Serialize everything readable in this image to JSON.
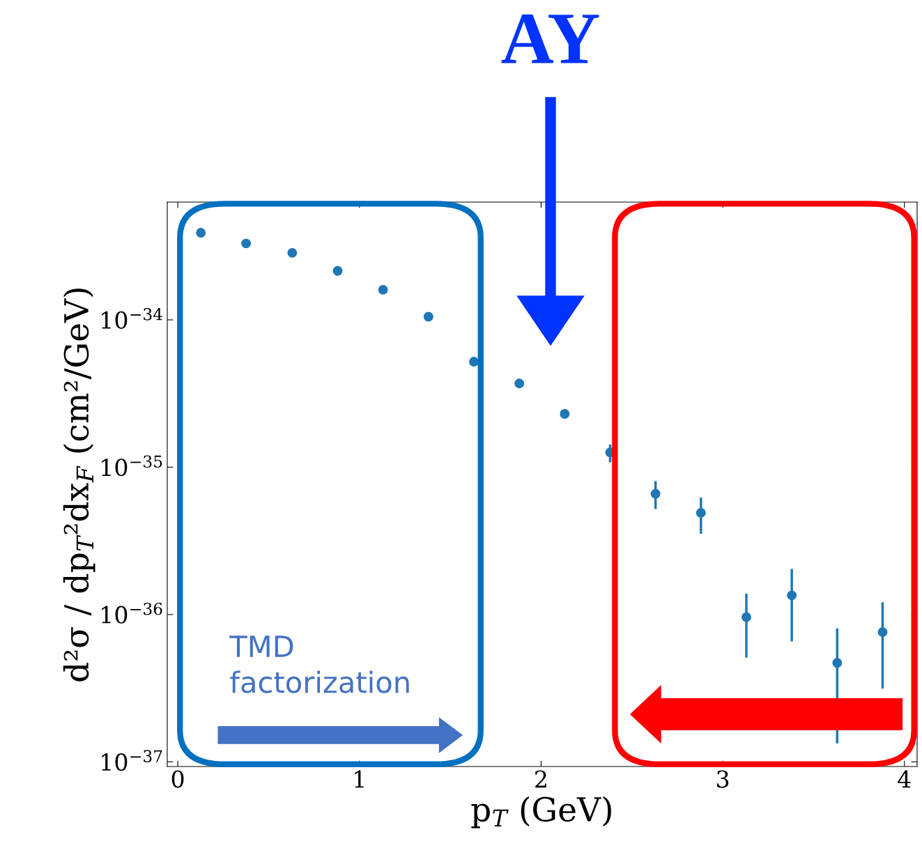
{
  "chart_data": {
    "type": "scatter",
    "xlabel": "p$_{T}$ (GeV)",
    "ylabel": "d²σ / dp$_{T}$²dx$_{F}$ (cm²/GeV)",
    "annotations": [
      "AY",
      "TMD\nfactorization"
    ],
    "x": [
      0.127,
      0.376,
      0.63,
      0.88,
      1.13,
      1.38,
      1.63,
      1.88,
      2.13,
      2.38,
      2.63,
      2.88,
      3.13,
      3.38,
      3.63,
      3.88
    ],
    "values": [
      3.9e-34,
      3.3e-34,
      2.85e-34,
      2.15e-34,
      1.6e-34,
      1.05e-34,
      5.2e-35,
      3.7e-35,
      2.3e-35,
      1.26e-35,
      6.6e-36,
      4.9e-36,
      9.6e-37,
      1.35e-36,
      4.7e-37,
      7.6e-37
    ],
    "errors": [
      null,
      null,
      null,
      null,
      null,
      null,
      null,
      null,
      null,
      [
        1.1e-35,
        1.4e-35
      ],
      [
        5.3e-36,
        7.9e-36
      ],
      [
        3.6e-36,
        6.1e-36
      ],
      [
        5.2e-37,
        1.36e-36
      ],
      [
        6.7e-37,
        2e-36
      ],
      [
        1.36e-37,
        7.9e-37
      ],
      [
        3.2e-37,
        1.19e-36
      ]
    ],
    "color": "#1f77b4",
    "marker": "circle",
    "log": "y",
    "xlim": [
      -0.058,
      4.07
    ],
    "ylim": [
      9.3e-38,
      6.3e-34
    ],
    "xticks": [
      0,
      1,
      2,
      3,
      4
    ],
    "yticks": [
      {
        "value": 1e-37,
        "label": "10$^{−37}$"
      },
      {
        "value": 1e-36,
        "label": "10$^{−36}$"
      },
      {
        "value": 1e-35,
        "label": "10$^{−35}$"
      },
      {
        "value": 1e-34,
        "label": "10$^{−34}$"
      }
    ]
  }
}
